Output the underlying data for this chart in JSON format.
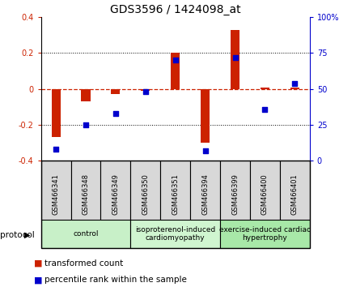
{
  "title": "GDS3596 / 1424098_at",
  "samples": [
    "GSM466341",
    "GSM466348",
    "GSM466349",
    "GSM466350",
    "GSM466351",
    "GSM466394",
    "GSM466399",
    "GSM466400",
    "GSM466401"
  ],
  "transformed_count": [
    -0.27,
    -0.07,
    -0.03,
    -0.01,
    0.2,
    -0.3,
    0.33,
    0.01,
    0.01
  ],
  "percentile_rank": [
    8,
    25,
    33,
    48,
    70,
    7,
    72,
    36,
    54
  ],
  "ylim_left": [
    -0.4,
    0.4
  ],
  "ylim_right": [
    0,
    100
  ],
  "yticks_left": [
    -0.4,
    -0.2,
    0.0,
    0.2,
    0.4
  ],
  "yticks_right": [
    0,
    25,
    50,
    75,
    100
  ],
  "ytick_labels_right": [
    "0",
    "25",
    "50",
    "75",
    "100%"
  ],
  "groups": [
    {
      "label": "control",
      "start": 0,
      "end": 3,
      "color": "#c8f0c8"
    },
    {
      "label": "isoproterenol-induced\ncardiomyopathy",
      "start": 3,
      "end": 6,
      "color": "#d0f5d0"
    },
    {
      "label": "exercise-induced cardiac\nhypertrophy",
      "start": 6,
      "end": 9,
      "color": "#a8e8a8"
    }
  ],
  "bar_color": "#cc2200",
  "dot_color": "#0000cc",
  "dashed_line_color": "#cc2200",
  "bg_color": "#ffffff",
  "title_fontsize": 10,
  "tick_fontsize": 7,
  "legend_fontsize": 7.5,
  "group_label_fontsize": 6.5,
  "sample_fontsize": 6,
  "protocol_fontsize": 7.5
}
